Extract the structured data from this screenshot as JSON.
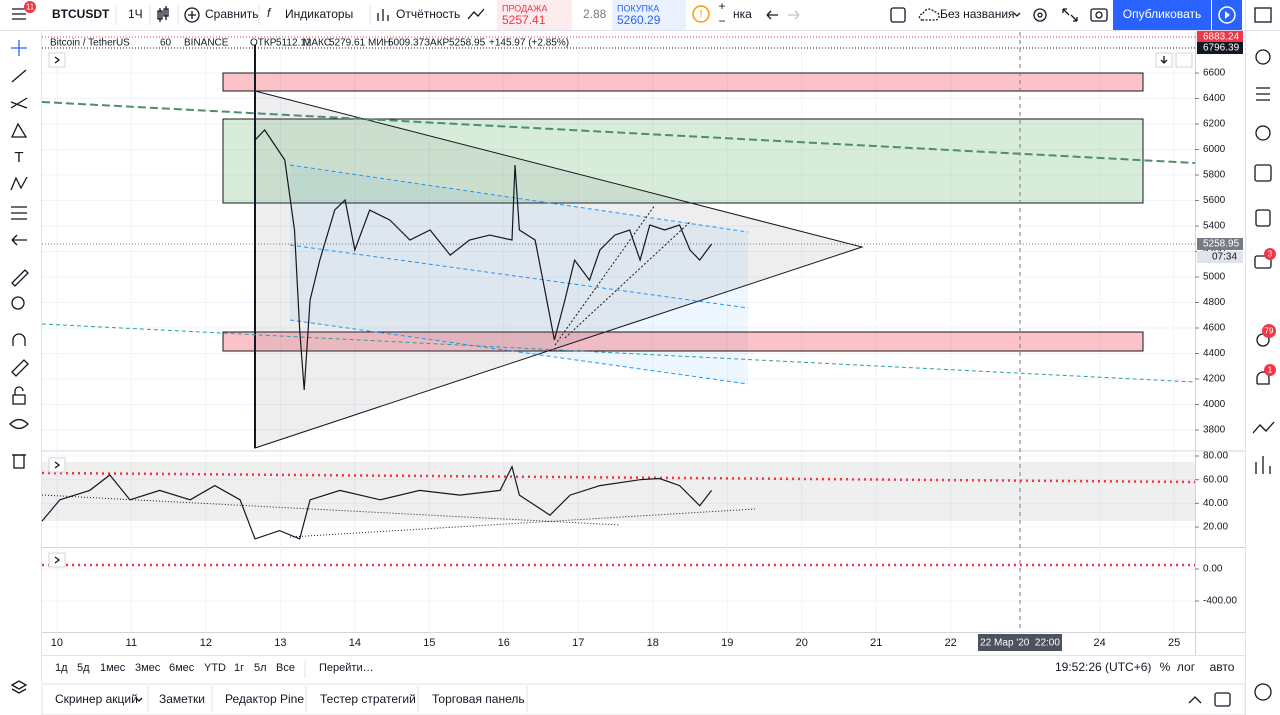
{
  "toolbar": {
    "menu_badge": "11",
    "symbol": "BTCUSDT",
    "interval": "1Ч",
    "compare": "Сравнить",
    "indicators": "Индикаторы",
    "financials": "Отчётность",
    "sell_label": "ПРОДАЖА",
    "sell_price": "5257.41",
    "spread": "2.88",
    "buy_label": "ПОКУПКА",
    "buy_price": "5260.29",
    "layout_partial": "нка",
    "layout_name": "Без названия",
    "publish": "Опубликовать"
  },
  "legend": {
    "symbol": "Bitcoin / TetherUS",
    "interval": "60",
    "exchange": "BINANCE",
    "open_label": "ОТКР",
    "open": "5112.12",
    "high_label": "МАКС",
    "high": "5279.61",
    "low_label": "МИН",
    "low": "5009.37",
    "close_label": "ЗАКР",
    "close": "5258.95",
    "change": "+145.97 (+2.85%)"
  },
  "right_badges": [
    "3",
    "79",
    "1"
  ],
  "chart_data": [
    {
      "type": "line",
      "color": "#131722",
      "x": [
        12.66,
        12.79,
        13.06,
        13.19,
        13.26,
        13.32,
        13.4,
        13.53,
        13.73,
        13.87,
        14.0,
        14.2,
        14.47,
        14.74,
        15.01,
        15.28,
        15.54,
        15.81,
        16.11,
        16.15,
        16.21,
        16.42,
        16.55,
        16.68,
        16.82,
        16.95,
        17.15,
        17.29,
        17.49,
        17.69,
        17.83,
        17.96,
        18.16,
        18.36,
        18.5,
        18.63,
        18.79
      ],
      "values": [
        6074,
        6153,
        5918,
        5369,
        4584,
        4114,
        4820,
        5133,
        5525,
        5604,
        5212,
        5525,
        5447,
        5290,
        5369,
        5172,
        5290,
        5329,
        5290,
        5878,
        5369,
        5290,
        4898,
        4506,
        4820,
        5133,
        4976,
        5212,
        5329,
        5369,
        5133,
        5408,
        5369,
        5408,
        5212,
        5133,
        5259
      ],
      "xlim": [
        9.8,
        25.28
      ],
      "xticks": [
        10,
        11,
        12,
        13,
        14,
        15,
        16,
        17,
        18,
        19,
        20,
        21,
        22,
        24,
        25
      ],
      "ylim": [
        3643,
        6922
      ],
      "yticks": [
        6600,
        6400,
        6200,
        6000,
        5800,
        5600,
        5400,
        5200,
        5000,
        4800,
        4600,
        4400,
        4200,
        4000,
        3800
      ],
      "markers": [
        6883.24,
        6796.39,
        5258.95
      ],
      "marker_colors": [
        "#f23645",
        "#131722",
        "#787b86"
      ],
      "countdown": "07:34",
      "crosshair_label": "22 Мар '20  22:00"
    },
    {
      "type": "line",
      "color": "#131722",
      "x": [
        9.8,
        10.04,
        10.44,
        10.71,
        10.98,
        11.38,
        11.79,
        12.12,
        12.46,
        12.66,
        12.99,
        13.26,
        13.4,
        13.8,
        14.34,
        14.87,
        15.41,
        15.95,
        16.11,
        16.21,
        16.62,
        16.89,
        17.29,
        17.83,
        18.09,
        18.36,
        18.63,
        18.79
      ],
      "values": [
        25,
        43,
        51,
        64,
        43,
        51,
        43,
        55,
        43,
        10,
        17,
        10,
        43,
        51,
        43,
        51,
        47,
        51,
        71,
        47,
        30,
        47,
        55,
        60,
        61,
        55,
        38,
        51
      ],
      "ylim": [
        4,
        83.4
      ],
      "yticks": [
        {
          "value": 80,
          "label": "80.00"
        },
        {
          "value": 60,
          "label": "60.00"
        },
        {
          "value": 40,
          "label": "40.00"
        },
        {
          "value": 20,
          "label": "20.00"
        }
      ]
    },
    {
      "type": "line",
      "ylim": [
        -787,
        250
      ],
      "yticks": [
        {
          "value": 0,
          "label": "0.00"
        },
        {
          "value": -400,
          "label": "-400.00"
        }
      ]
    }
  ],
  "range_bar": {
    "ranges": [
      "1д",
      "5д",
      "1мес",
      "3мес",
      "6мес",
      "YTD",
      "1г",
      "5л",
      "Все"
    ],
    "goto": "Перейти…",
    "clock": "19:52:26 (UTC+6)",
    "percent": "%",
    "log": "лог",
    "auto": "авто"
  },
  "bottom_tabs": [
    "Скринер акций",
    "Заметки",
    "Редактор Pine",
    "Тестер стратегий",
    "Торговая панель"
  ]
}
